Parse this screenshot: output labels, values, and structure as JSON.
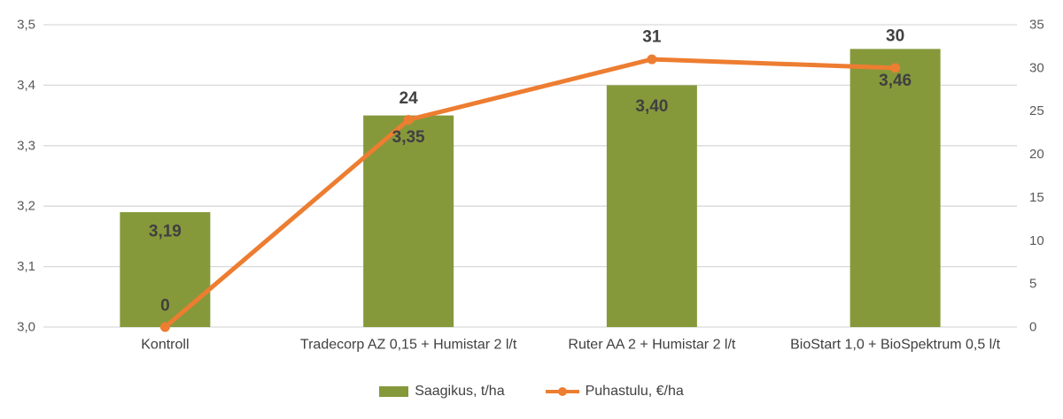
{
  "chart_data": {
    "type": "combo-bar-line",
    "title": "",
    "categories": [
      "Kontroll",
      "Tradecorp AZ 0,15 + Humistar 2 l/t",
      "Ruter AA 2 + Humistar 2 l/t",
      "BioStart 1,0 + BioSpektrum 0,5 l/t"
    ],
    "series": [
      {
        "name": "Saagikus, t/ha",
        "type": "bar",
        "axis": "left",
        "color": "#85993B",
        "values": [
          3.19,
          3.35,
          3.4,
          3.46
        ],
        "labels": [
          "3,19",
          "3,35",
          "3,40",
          "3,46"
        ],
        "label_dy": [
          22,
          25,
          24,
          36
        ]
      },
      {
        "name": "Puhastulu, €/ha",
        "type": "line",
        "axis": "right",
        "color": "#ED7D31",
        "values": [
          0,
          24,
          31,
          30
        ],
        "labels": [
          "0",
          "24",
          "31",
          "30"
        ],
        "label_dy": [
          -24,
          -24,
          -25,
          -36
        ]
      }
    ],
    "left_axis": {
      "min": 3.0,
      "max": 3.5,
      "tick_labels": [
        "3,5",
        "3,4",
        "3,3",
        "3,2",
        "3,1",
        "3,0"
      ],
      "tick_values": [
        3.5,
        3.4,
        3.3,
        3.2,
        3.1,
        3.0
      ]
    },
    "right_axis": {
      "min": 0,
      "max": 35,
      "tick_labels": [
        "35",
        "30",
        "25",
        "20",
        "15",
        "10",
        "5",
        "0"
      ],
      "tick_values": [
        35,
        30,
        25,
        20,
        15,
        10,
        5,
        0
      ]
    },
    "colors": {
      "grid": "#D9D9D9",
      "axis_tick_text": "#595959",
      "category_text": "#404040",
      "data_label_text": "#404040",
      "background": "#FFFFFF"
    },
    "grid": true,
    "legend_position": "bottom"
  }
}
